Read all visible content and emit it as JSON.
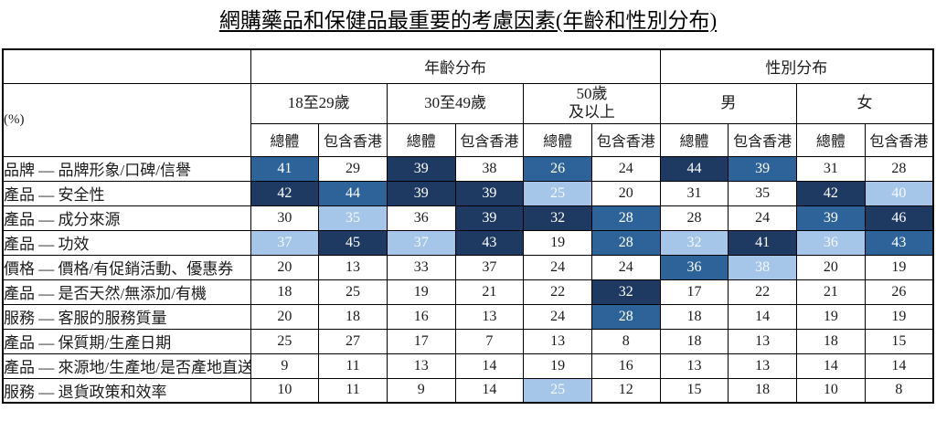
{
  "page": {
    "title": "網購藥品和保健品最重要的考慮因素(年齡和性別分布)"
  },
  "colors": {
    "highlight_dark": "#1F3A62",
    "highlight_medium": "#2D6399",
    "highlight_light": "#A6C6E9",
    "border": "#000000"
  },
  "table": {
    "corner_label": "(%)",
    "groups": [
      "年齡分布",
      "性別分布"
    ],
    "subgroups": [
      "18至29歲",
      "30至49歲",
      "50歲\n及以上",
      "男",
      "女"
    ],
    "measures": [
      "總體",
      "包含香港"
    ],
    "rows": [
      {
        "label": "品牌 — 品牌形象/口碑/信譽",
        "values": [
          41,
          29,
          39,
          38,
          26,
          24,
          44,
          39,
          31,
          28
        ],
        "highlights": [
          "medium",
          "",
          "dark",
          "",
          "medium",
          "",
          "dark",
          "medium",
          "",
          ""
        ]
      },
      {
        "label": "產品 — 安全性",
        "values": [
          42,
          44,
          39,
          39,
          25,
          20,
          31,
          35,
          42,
          40
        ],
        "highlights": [
          "dark",
          "medium",
          "dark",
          "dark",
          "light",
          "",
          "",
          "",
          "dark",
          "light"
        ]
      },
      {
        "label": "產品 — 成分來源",
        "values": [
          30,
          35,
          36,
          39,
          32,
          28,
          28,
          24,
          39,
          46
        ],
        "highlights": [
          "",
          "light",
          "",
          "dark",
          "dark",
          "medium",
          "",
          "",
          "medium",
          "dark"
        ]
      },
      {
        "label": "產品 — 功效",
        "values": [
          37,
          45,
          37,
          43,
          19,
          28,
          32,
          41,
          36,
          43
        ],
        "highlights": [
          "light",
          "dark",
          "light",
          "dark",
          "",
          "medium",
          "light",
          "dark",
          "light",
          "medium"
        ]
      },
      {
        "label": "價格 — 價格/有促銷活動、優惠券",
        "values": [
          20,
          13,
          33,
          37,
          24,
          24,
          36,
          38,
          20,
          19
        ],
        "highlights": [
          "",
          "",
          "",
          "",
          "",
          "",
          "medium",
          "light",
          "",
          ""
        ]
      },
      {
        "label": "產品 — 是否天然/無添加/有機",
        "values": [
          18,
          25,
          19,
          21,
          22,
          32,
          17,
          22,
          21,
          26
        ],
        "highlights": [
          "",
          "",
          "",
          "",
          "",
          "dark",
          "",
          "",
          "",
          ""
        ]
      },
      {
        "label": "服務 — 客服的服務質量",
        "values": [
          20,
          18,
          16,
          13,
          24,
          28,
          18,
          14,
          19,
          19
        ],
        "highlights": [
          "",
          "",
          "",
          "",
          "",
          "medium",
          "",
          "",
          "",
          ""
        ]
      },
      {
        "label": "產品 — 保質期/生產日期",
        "values": [
          25,
          27,
          17,
          7,
          13,
          8,
          18,
          13,
          18,
          15
        ],
        "highlights": [
          "",
          "",
          "",
          "",
          "",
          "",
          "",
          "",
          "",
          ""
        ]
      },
      {
        "label": "產品 — 來源地/生產地/是否產地直送",
        "values": [
          9,
          11,
          13,
          14,
          19,
          16,
          13,
          13,
          14,
          14
        ],
        "highlights": [
          "",
          "",
          "",
          "",
          "",
          "",
          "",
          "",
          "",
          ""
        ]
      },
      {
        "label": "服務 — 退貨政策和效率",
        "values": [
          10,
          11,
          9,
          14,
          25,
          12,
          15,
          18,
          10,
          8
        ],
        "highlights": [
          "",
          "",
          "",
          "",
          "light",
          "",
          "",
          "",
          "",
          ""
        ]
      }
    ]
  }
}
